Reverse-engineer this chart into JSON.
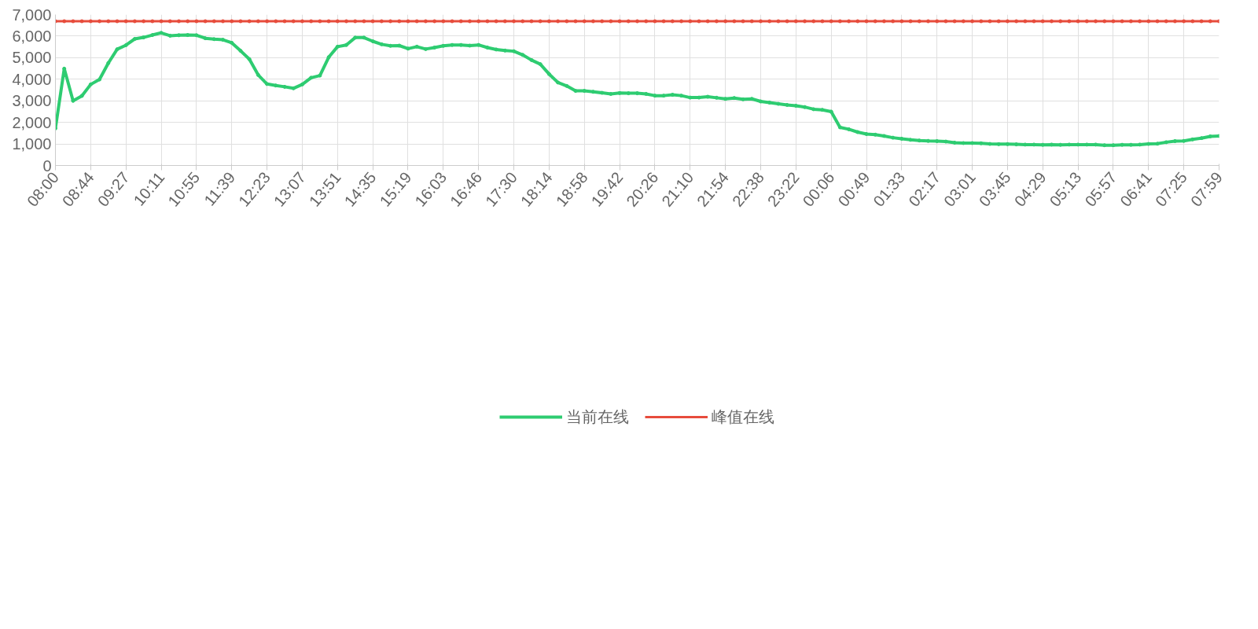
{
  "chart_data": {
    "type": "line",
    "categories": [
      "08:00",
      null,
      null,
      null,
      "08:44",
      null,
      null,
      null,
      "09:27",
      null,
      null,
      null,
      "10:11",
      null,
      null,
      null,
      "10:55",
      null,
      null,
      null,
      "11:39",
      null,
      null,
      null,
      "12:23",
      null,
      null,
      null,
      "13:07",
      null,
      null,
      null,
      "13:51",
      null,
      null,
      null,
      "14:35",
      null,
      null,
      null,
      "15:19",
      null,
      null,
      null,
      "16:03",
      null,
      null,
      null,
      "16:46",
      null,
      null,
      null,
      "17:30",
      null,
      null,
      null,
      "18:14",
      null,
      null,
      null,
      "18:58",
      null,
      null,
      null,
      "19:42",
      null,
      null,
      null,
      "20:26",
      null,
      null,
      null,
      "21:10",
      null,
      null,
      null,
      "21:54",
      null,
      null,
      null,
      "22:38",
      null,
      null,
      null,
      "23:22",
      null,
      null,
      null,
      "00:06",
      null,
      null,
      null,
      "00:49",
      null,
      null,
      null,
      "01:33",
      null,
      null,
      null,
      "02:17",
      null,
      null,
      null,
      "03:01",
      null,
      null,
      null,
      "03:45",
      null,
      null,
      null,
      "04:29",
      null,
      null,
      null,
      "05:13",
      null,
      null,
      null,
      "05:57",
      null,
      null,
      null,
      "06:41",
      null,
      null,
      null,
      "07:25",
      null,
      null,
      null,
      "07:59"
    ],
    "series": [
      {
        "name": "当前在线",
        "color": "#2ecc71",
        "values": [
          1720,
          4490,
          3000,
          3230,
          3760,
          3990,
          4750,
          5390,
          5580,
          5870,
          5940,
          6050,
          6150,
          6020,
          6040,
          6050,
          6040,
          5900,
          5860,
          5830,
          5690,
          5320,
          4930,
          4200,
          3780,
          3710,
          3650,
          3580,
          3760,
          4070,
          4170,
          5020,
          5510,
          5590,
          5930,
          5930,
          5760,
          5620,
          5550,
          5560,
          5420,
          5510,
          5400,
          5470,
          5550,
          5590,
          5590,
          5560,
          5590,
          5470,
          5380,
          5330,
          5300,
          5130,
          4890,
          4700,
          4240,
          3850,
          3690,
          3460,
          3460,
          3420,
          3370,
          3320,
          3360,
          3350,
          3350,
          3320,
          3240,
          3240,
          3280,
          3240,
          3150,
          3150,
          3190,
          3140,
          3090,
          3130,
          3070,
          3090,
          2970,
          2920,
          2860,
          2810,
          2770,
          2710,
          2610,
          2580,
          2500,
          1770,
          1680,
          1550,
          1460,
          1430,
          1370,
          1290,
          1240,
          1190,
          1160,
          1140,
          1130,
          1110,
          1060,
          1040,
          1040,
          1030,
          1000,
          990,
          990,
          980,
          970,
          970,
          960,
          970,
          960,
          970,
          970,
          970,
          970,
          940,
          940,
          960,
          960,
          970,
          1000,
          1010,
          1080,
          1130,
          1140,
          1210,
          1270,
          1350,
          1370
        ]
      },
      {
        "name": "峰值在线",
        "color": "#e74c3c",
        "values": [
          6690,
          6690,
          6690,
          6690,
          6690,
          6690,
          6690,
          6690,
          6690,
          6690,
          6690,
          6690,
          6690,
          6690,
          6690,
          6690,
          6690,
          6690,
          6690,
          6690,
          6690,
          6690,
          6690,
          6690,
          6690,
          6690,
          6690,
          6690,
          6690,
          6690,
          6690,
          6690,
          6690,
          6690,
          6690,
          6690,
          6690,
          6690,
          6690,
          6690,
          6690,
          6690,
          6690,
          6690,
          6690,
          6690,
          6690,
          6690,
          6690,
          6690,
          6690,
          6690,
          6690,
          6690,
          6690,
          6690,
          6690,
          6690,
          6690,
          6690,
          6690,
          6690,
          6690,
          6690,
          6690,
          6690,
          6690,
          6690,
          6690,
          6690,
          6690,
          6690,
          6690,
          6690,
          6690,
          6690,
          6690,
          6690,
          6690,
          6690,
          6690,
          6690,
          6690,
          6690,
          6690,
          6690,
          6690,
          6690,
          6690,
          6690,
          6690,
          6690,
          6690,
          6690,
          6690,
          6690,
          6690,
          6690,
          6690,
          6690,
          6690,
          6690,
          6690,
          6690,
          6690,
          6690,
          6690,
          6690,
          6690,
          6690,
          6690,
          6690,
          6690,
          6690,
          6690,
          6690,
          6690,
          6690,
          6690,
          6690,
          6690,
          6690,
          6690,
          6690,
          6690,
          6690,
          6690,
          6690,
          6690,
          6690,
          6690,
          6690,
          6690
        ]
      }
    ],
    "ylim": [
      0,
      7000
    ],
    "yticks": [
      {
        "value": 0,
        "label": "0"
      },
      {
        "value": 1000,
        "label": "1,000"
      },
      {
        "value": 2000,
        "label": "2,000"
      },
      {
        "value": 3000,
        "label": "3,000"
      },
      {
        "value": 4000,
        "label": "4,000"
      },
      {
        "value": 5000,
        "label": "5,000"
      },
      {
        "value": 6000,
        "label": "6,000"
      },
      {
        "value": 7000,
        "label": "7,000"
      }
    ],
    "grid": true,
    "legend": "bottom",
    "marker": "circle",
    "line_style": "solid"
  }
}
